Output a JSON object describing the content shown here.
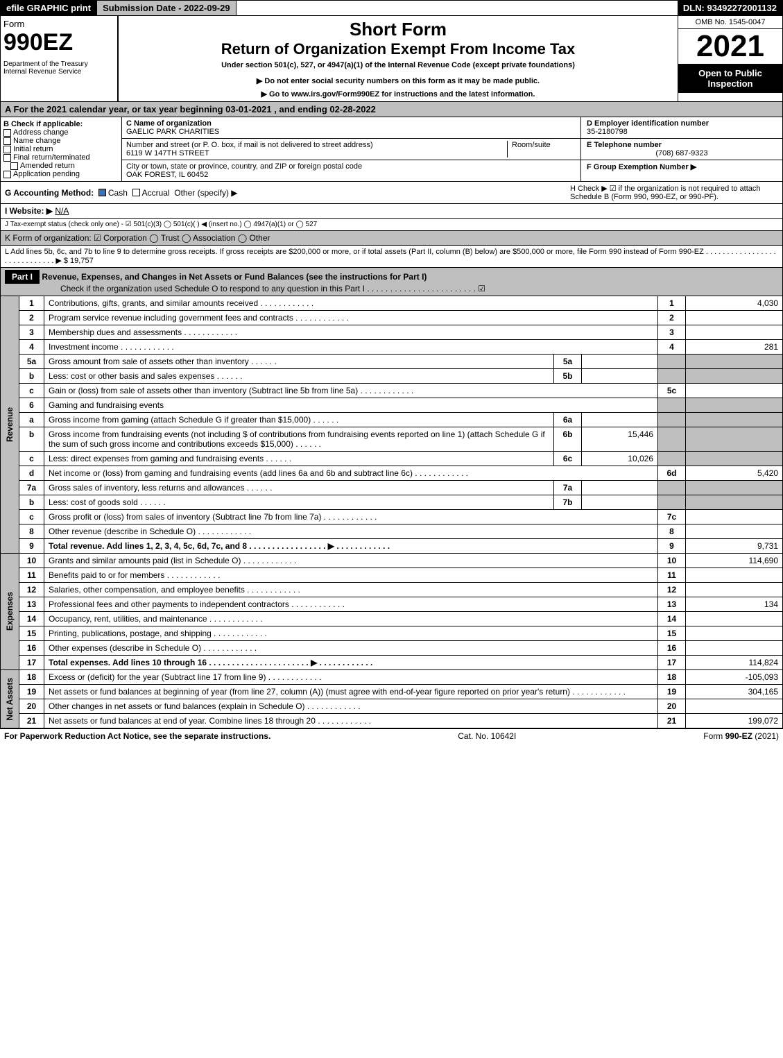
{
  "topbar": {
    "efile": "efile GRAPHIC print",
    "subdate": "Submission Date - 2022-09-29",
    "dln": "DLN: 93492272001132"
  },
  "header": {
    "form_label": "Form",
    "form_number": "990EZ",
    "dept": "Department of the Treasury\nInternal Revenue Service",
    "title1": "Short Form",
    "title2": "Return of Organization Exempt From Income Tax",
    "subtitle": "Under section 501(c), 527, or 4947(a)(1) of the Internal Revenue Code (except private foundations)",
    "warn": "▶ Do not enter social security numbers on this form as it may be made public.",
    "goto": "▶ Go to www.irs.gov/Form990EZ for instructions and the latest information.",
    "omb": "OMB No. 1545-0047",
    "year": "2021",
    "open": "Open to Public Inspection"
  },
  "secA": "A  For the 2021 calendar year, or tax year beginning 03-01-2021 , and ending 02-28-2022",
  "boxB": {
    "label": "B  Check if applicable:",
    "opts": [
      "Address change",
      "Name change",
      "Initial return",
      "Final return/terminated",
      "Amended return",
      "Application pending"
    ]
  },
  "boxC": {
    "label": "C Name of organization",
    "name": "GAELIC PARK CHARITIES",
    "street_label": "Number and street (or P. O. box, if mail is not delivered to street address)",
    "street": "6119 W 147TH STREET",
    "room_label": "Room/suite",
    "city_label": "City or town, state or province, country, and ZIP or foreign postal code",
    "city": "OAK FOREST, IL  60452"
  },
  "boxD": {
    "label": "D Employer identification number",
    "val": "35-2180798"
  },
  "boxE": {
    "label": "E Telephone number",
    "val": "(708) 687-9323"
  },
  "boxF": {
    "label": "F Group Exemption Number ▶",
    "val": ""
  },
  "lineG": {
    "label": "G Accounting Method:",
    "opts": [
      "Cash",
      "Accrual",
      "Other (specify) ▶"
    ],
    "selected": 0
  },
  "lineH": "H  Check ▶  ☑  if the organization is not required to attach Schedule B (Form 990, 990-EZ, or 990-PF).",
  "lineI": {
    "label": "I Website: ▶",
    "val": "N/A"
  },
  "lineJ": "J Tax-exempt status (check only one) - ☑ 501(c)(3)  ◯ 501(c)( ) ◀ (insert no.)  ◯ 4947(a)(1) or  ◯ 527",
  "lineK": "K Form of organization:  ☑ Corporation  ◯ Trust  ◯ Association  ◯ Other",
  "lineL": "L Add lines 5b, 6c, and 7b to line 9 to determine gross receipts. If gross receipts are $200,000 or more, or if total assets (Part II, column (B) below) are $500,000 or more, file Form 990 instead of Form 990-EZ . . . . . . . . . . . . . . . . . . . . . . . . . . . . .  ▶ $ 19,757",
  "part1": {
    "bar": "Part I",
    "title": "Revenue, Expenses, and Changes in Net Assets or Fund Balances (see the instructions for Part I)",
    "check": "Check if the organization used Schedule O to respond to any question in this Part I . . . . . . . . . . . . . . . . . . . . . . . .  ☑"
  },
  "labels": {
    "revenue": "Revenue",
    "expenses": "Expenses",
    "netassets": "Net Assets"
  },
  "lines": [
    {
      "n": "1",
      "d": "Contributions, gifts, grants, and similar amounts received",
      "r": "1",
      "a": "4,030"
    },
    {
      "n": "2",
      "d": "Program service revenue including government fees and contracts",
      "r": "2",
      "a": ""
    },
    {
      "n": "3",
      "d": "Membership dues and assessments",
      "r": "3",
      "a": ""
    },
    {
      "n": "4",
      "d": "Investment income",
      "r": "4",
      "a": "281"
    },
    {
      "n": "5a",
      "d": "Gross amount from sale of assets other than inventory",
      "sl": "5a",
      "sv": "",
      "shade": true
    },
    {
      "n": "b",
      "d": "Less: cost or other basis and sales expenses",
      "sl": "5b",
      "sv": "",
      "shade": true
    },
    {
      "n": "c",
      "d": "Gain or (loss) from sale of assets other than inventory (Subtract line 5b from line 5a)",
      "r": "5c",
      "a": ""
    },
    {
      "n": "6",
      "d": "Gaming and fundraising events",
      "shadeonly": true
    },
    {
      "n": "a",
      "d": "Gross income from gaming (attach Schedule G if greater than $15,000)",
      "sl": "6a",
      "sv": "",
      "shade": true
    },
    {
      "n": "b",
      "d": "Gross income from fundraising events (not including $                     of contributions from fundraising events reported on line 1) (attach Schedule G if the sum of such gross income and contributions exceeds $15,000)",
      "sl": "6b",
      "sv": "15,446",
      "shade": true
    },
    {
      "n": "c",
      "d": "Less: direct expenses from gaming and fundraising events",
      "sl": "6c",
      "sv": "10,026",
      "shade": true
    },
    {
      "n": "d",
      "d": "Net income or (loss) from gaming and fundraising events (add lines 6a and 6b and subtract line 6c)",
      "r": "6d",
      "a": "5,420"
    },
    {
      "n": "7a",
      "d": "Gross sales of inventory, less returns and allowances",
      "sl": "7a",
      "sv": "",
      "shade": true
    },
    {
      "n": "b",
      "d": "Less: cost of goods sold",
      "sl": "7b",
      "sv": "",
      "shade": true
    },
    {
      "n": "c",
      "d": "Gross profit or (loss) from sales of inventory (Subtract line 7b from line 7a)",
      "r": "7c",
      "a": ""
    },
    {
      "n": "8",
      "d": "Other revenue (describe in Schedule O)",
      "r": "8",
      "a": ""
    },
    {
      "n": "9",
      "d": "Total revenue. Add lines 1, 2, 3, 4, 5c, 6d, 7c, and 8  . . . . . . . . . . . . . . . . .  ▶",
      "r": "9",
      "a": "9,731",
      "bold": true
    }
  ],
  "exp_lines": [
    {
      "n": "10",
      "d": "Grants and similar amounts paid (list in Schedule O)",
      "r": "10",
      "a": "114,690"
    },
    {
      "n": "11",
      "d": "Benefits paid to or for members",
      "r": "11",
      "a": ""
    },
    {
      "n": "12",
      "d": "Salaries, other compensation, and employee benefits",
      "r": "12",
      "a": ""
    },
    {
      "n": "13",
      "d": "Professional fees and other payments to independent contractors",
      "r": "13",
      "a": "134"
    },
    {
      "n": "14",
      "d": "Occupancy, rent, utilities, and maintenance",
      "r": "14",
      "a": ""
    },
    {
      "n": "15",
      "d": "Printing, publications, postage, and shipping",
      "r": "15",
      "a": ""
    },
    {
      "n": "16",
      "d": "Other expenses (describe in Schedule O)",
      "r": "16",
      "a": ""
    },
    {
      "n": "17",
      "d": "Total expenses. Add lines 10 through 16  . . . . . . . . . . . . . . . . . . . . . .  ▶",
      "r": "17",
      "a": "114,824",
      "bold": true
    }
  ],
  "na_lines": [
    {
      "n": "18",
      "d": "Excess or (deficit) for the year (Subtract line 17 from line 9)",
      "r": "18",
      "a": "-105,093"
    },
    {
      "n": "19",
      "d": "Net assets or fund balances at beginning of year (from line 27, column (A)) (must agree with end-of-year figure reported on prior year's return)",
      "r": "19",
      "a": "304,165"
    },
    {
      "n": "20",
      "d": "Other changes in net assets or fund balances (explain in Schedule O)",
      "r": "20",
      "a": ""
    },
    {
      "n": "21",
      "d": "Net assets or fund balances at end of year. Combine lines 18 through 20",
      "r": "21",
      "a": "199,072"
    }
  ],
  "footer": {
    "left": "For Paperwork Reduction Act Notice, see the separate instructions.",
    "mid": "Cat. No. 10642I",
    "right": "Form 990-EZ (2021)"
  }
}
